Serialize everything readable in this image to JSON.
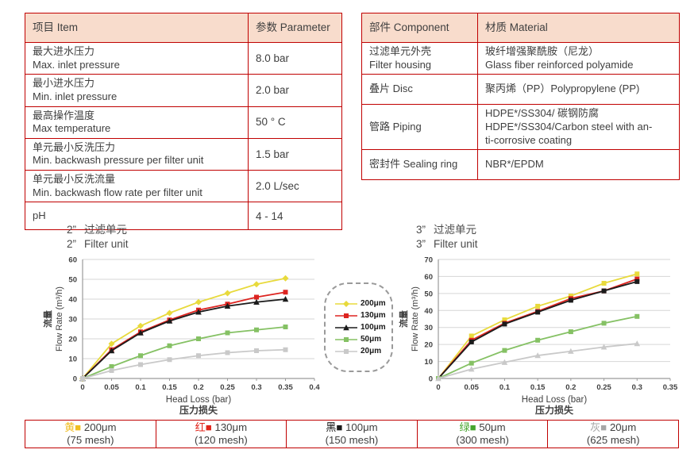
{
  "palette": {
    "table_border": "#c00000",
    "header_fill": "#f8dccc",
    "text": "#3f3f3f",
    "grid": "#d6d6d6",
    "axis": "#9b9b9b"
  },
  "spec_table": {
    "headers": [
      "项目 Item",
      "参数 Parameter"
    ],
    "rows": [
      {
        "item_lines": [
          "最大进水压力",
          "Max. inlet pressure"
        ],
        "param": "8.0 bar"
      },
      {
        "item_lines": [
          "最小进水压力",
          "Min. inlet pressure"
        ],
        "param": "2.0 bar"
      },
      {
        "item_lines": [
          "最高操作温度",
          "Max temperature"
        ],
        "param": "50 ° C"
      },
      {
        "item_lines": [
          "单元最小反洗压力",
          "Min. backwash pressure per filter unit"
        ],
        "param": "1.5 bar"
      },
      {
        "item_lines": [
          "单元最小反洗流量",
          "Min. backwash flow rate per filter unit"
        ],
        "param": "2.0 L/sec"
      },
      {
        "item_lines": [
          "pH"
        ],
        "param": "4 - 14"
      }
    ]
  },
  "material_table": {
    "headers": [
      "部件 Component",
      "材质 Material"
    ],
    "rows": [
      {
        "component_lines": [
          "过滤单元外壳",
          "Filter housing"
        ],
        "material_lines": [
          "玻纤增强聚酰胺（尼龙）",
          "Glass fiber reinforced polyamide"
        ]
      },
      {
        "component_lines": [
          "叠片 Disc"
        ],
        "material_lines": [
          "聚丙烯（PP）Polypropylene (PP)"
        ]
      },
      {
        "component_lines": [
          "管路 Piping"
        ],
        "material_lines": [
          "HDPE*/SS304/ 碳钢防腐",
          "HDPE*/SS304/Carbon steel with an-",
          "ti-corrosive coating"
        ]
      },
      {
        "component_lines": [
          "密封件 Sealing ring"
        ],
        "material_lines": [
          "NBR*/EPDM"
        ]
      }
    ]
  },
  "chart_data": [
    {
      "type": "line",
      "title_lines": [
        "2”",
        "过滤单元",
        "2”",
        "Filter unit"
      ],
      "xlabel": "Head Loss (bar)",
      "xlabel_cn": "压力损失",
      "ylabel_cn": "流量",
      "ylabel": "Flow Rate (m³/h)",
      "xlim": [
        0,
        0.4
      ],
      "ylim": [
        0,
        60
      ],
      "xticks": [
        0,
        0.05,
        0.1,
        0.15,
        0.2,
        0.25,
        0.3,
        0.35,
        0.4
      ],
      "yticks": [
        0,
        10,
        20,
        30,
        40,
        50,
        60
      ],
      "x": [
        0,
        0.05,
        0.1,
        0.15,
        0.2,
        0.25,
        0.3,
        0.35
      ],
      "series": [
        {
          "name": "200μm",
          "color": "#e8da3c",
          "marker": "diamond",
          "values": [
            0,
            17.5,
            26.5,
            33,
            38.5,
            43,
            47.5,
            50.5
          ]
        },
        {
          "name": "130μm",
          "color": "#dd2420",
          "marker": "square",
          "values": [
            0,
            14.5,
            23.5,
            29.5,
            34.5,
            37.5,
            41,
            43.5
          ]
        },
        {
          "name": "100μm",
          "color": "#1b1b1b",
          "marker": "triangle",
          "values": [
            0,
            14,
            23,
            29,
            33.5,
            36.5,
            38.5,
            40
          ]
        },
        {
          "name": "50μm",
          "color": "#85c164",
          "marker": "square",
          "values": [
            0,
            6,
            11.5,
            16.5,
            20,
            23,
            24.5,
            26
          ]
        },
        {
          "name": "20μm",
          "color": "#c9c9c9",
          "marker": "square",
          "values": [
            0,
            4,
            7,
            9.5,
            11.5,
            13,
            14,
            14.5
          ]
        }
      ]
    },
    {
      "type": "line",
      "title_lines": [
        "3”",
        "过滤单元",
        "3”",
        "Filter unit"
      ],
      "xlabel": "Head Loss (bar)",
      "xlabel_cn": "压力损失",
      "ylabel_cn": "流量",
      "ylabel": "Flow Rate (m³/h)",
      "xlim": [
        0,
        0.35
      ],
      "ylim": [
        0,
        70
      ],
      "xticks": [
        0,
        0.05,
        0.1,
        0.15,
        0.2,
        0.25,
        0.3,
        0.35
      ],
      "yticks": [
        0,
        10,
        20,
        30,
        40,
        50,
        60,
        70
      ],
      "x": [
        0,
        0.05,
        0.1,
        0.15,
        0.2,
        0.25,
        0.3
      ],
      "series": [
        {
          "name": "200μm",
          "color": "#e8da3c",
          "marker": "square",
          "values": [
            0,
            25,
            34.5,
            42.5,
            48.5,
            56,
            61.5
          ]
        },
        {
          "name": "130μm",
          "color": "#dd2420",
          "marker": "square",
          "values": [
            0,
            22.5,
            32.5,
            39.5,
            47,
            51.5,
            58.5
          ]
        },
        {
          "name": "100μm",
          "color": "#1b1b1b",
          "marker": "square",
          "values": [
            0,
            21.5,
            32,
            39,
            46,
            51.5,
            57
          ]
        },
        {
          "name": "50μm",
          "color": "#85c164",
          "marker": "square",
          "values": [
            0,
            9,
            16.5,
            22.5,
            27.5,
            32.5,
            36.5
          ]
        },
        {
          "name": "20μm",
          "color": "#c9c9c9",
          "marker": "triangle",
          "values": [
            0,
            5.5,
            9.5,
            13.5,
            16,
            18.5,
            20.5
          ]
        }
      ]
    }
  ],
  "series_legend": {
    "entries": [
      {
        "label": "200μm",
        "color": "#e8da3c",
        "marker": "diamond"
      },
      {
        "label": "130μm",
        "color": "#dd2420",
        "marker": "square"
      },
      {
        "label": "100μm",
        "color": "#1b1b1b",
        "marker": "triangle"
      },
      {
        "label": "50μm",
        "color": "#85c164",
        "marker": "square"
      },
      {
        "label": "20μm",
        "color": "#c9c9c9",
        "marker": "square"
      }
    ]
  },
  "bottom_legend": {
    "cells": [
      {
        "color_name": "黄",
        "swatch": "■",
        "color": "#f0bd20",
        "size": "200μm",
        "mesh": "(75 mesh)"
      },
      {
        "color_name": "红",
        "swatch": "■",
        "color": "#e1251b",
        "size": "130μm",
        "mesh": "(120 mesh)"
      },
      {
        "color_name": "黑",
        "swatch": "■",
        "color": "#1a1a1a",
        "size": "100μm",
        "mesh": "(150 mesh)"
      },
      {
        "color_name": "绿",
        "swatch": "■",
        "color": "#46a52e",
        "size": "50μm",
        "mesh": "(300 mesh)"
      },
      {
        "color_name": "灰",
        "swatch": "■",
        "color": "#a6a6a6",
        "size": "20μm",
        "mesh": "(625 mesh)"
      }
    ]
  }
}
